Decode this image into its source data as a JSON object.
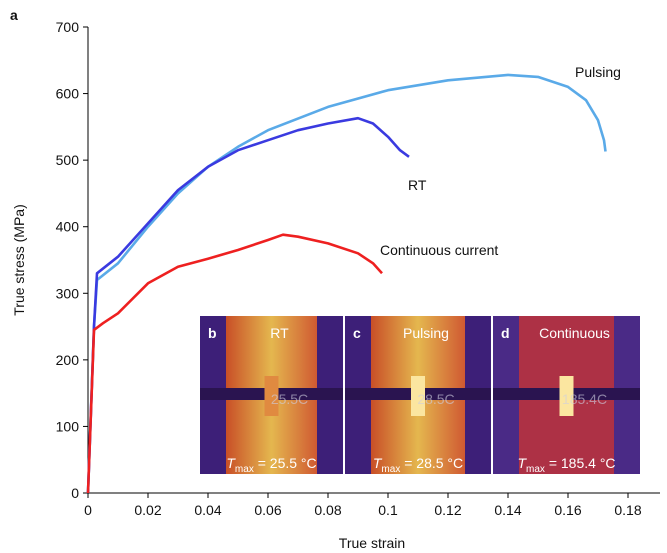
{
  "chart_data": {
    "type": "line",
    "panel_label": "a",
    "x_label": "True strain",
    "y_label": "True stress (MPa)",
    "xlim": [
      0,
      0.19
    ],
    "ylim": [
      0,
      700
    ],
    "xticks": [
      0,
      0.02,
      0.04,
      0.06,
      0.08,
      0.1,
      0.12,
      0.14,
      0.16,
      0.18
    ],
    "yticks": [
      0,
      100,
      200,
      300,
      400,
      500,
      600,
      700
    ],
    "series": [
      {
        "name": "Pulsing",
        "color": "#5aaae8",
        "x": [
          0,
          0.002,
          0.003,
          0.01,
          0.02,
          0.03,
          0.04,
          0.05,
          0.06,
          0.08,
          0.1,
          0.12,
          0.14,
          0.15,
          0.16,
          0.166,
          0.17,
          0.172,
          0.1725
        ],
        "values": [
          0,
          250,
          320,
          345,
          400,
          450,
          490,
          520,
          545,
          580,
          605,
          620,
          628,
          625,
          610,
          590,
          560,
          530,
          513
        ]
      },
      {
        "name": "RT",
        "color": "#3a3ae0",
        "x": [
          0,
          0.002,
          0.003,
          0.01,
          0.02,
          0.03,
          0.04,
          0.05,
          0.06,
          0.07,
          0.08,
          0.09,
          0.095,
          0.1,
          0.104,
          0.107
        ],
        "values": [
          0,
          250,
          330,
          355,
          405,
          455,
          490,
          515,
          530,
          545,
          555,
          563,
          555,
          535,
          515,
          505
        ]
      },
      {
        "name": "Continuous current",
        "color": "#ee2020",
        "x": [
          0,
          0.002,
          0.005,
          0.01,
          0.02,
          0.03,
          0.04,
          0.05,
          0.06,
          0.065,
          0.07,
          0.08,
          0.09,
          0.095,
          0.098
        ],
        "values": [
          0,
          245,
          255,
          270,
          315,
          340,
          352,
          365,
          380,
          388,
          385,
          375,
          360,
          345,
          330
        ]
      }
    ],
    "insets": [
      {
        "letter": "b",
        "label": "RT",
        "reading": "25.5C",
        "symbol": "T",
        "subscript": "max",
        "text": " = 25.5 °C"
      },
      {
        "letter": "c",
        "label": "Pulsing",
        "reading": "28.5C",
        "symbol": "T",
        "subscript": "max",
        "text": " = 28.5 °C"
      },
      {
        "letter": "d",
        "label": "Continuous",
        "reading": "185.4C",
        "symbol": "T",
        "subscript": "max",
        "text": " = 185.4 °C"
      }
    ]
  }
}
